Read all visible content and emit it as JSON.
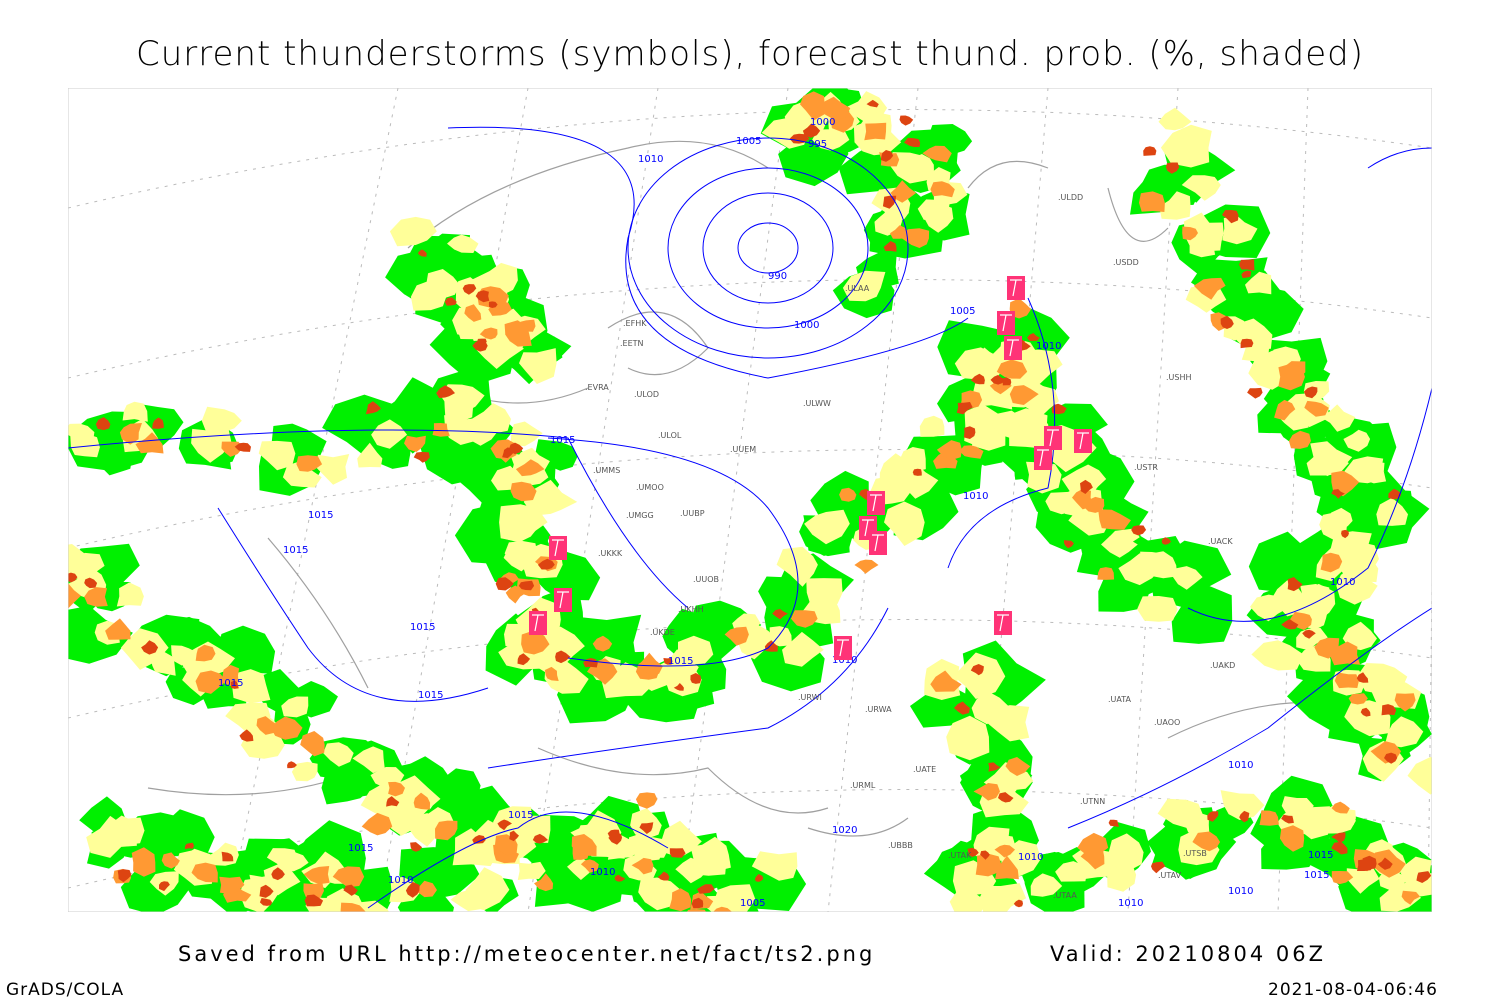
{
  "title": "Current thunderstorms (symbols), forecast thund. prob. (%, shaded)",
  "footer": {
    "source": "Saved from URL http://meteocenter.net/fact/ts2.png",
    "valid": "Valid: 20210804 06Z",
    "software": "GrADS/COLA",
    "timestamp": "2021-08-04-06:46"
  },
  "map": {
    "colors": {
      "prob_low": "#00f000",
      "prob_mid": "#ffff99",
      "prob_high": "#ff9933",
      "prob_max": "#dd4411",
      "thunderstorm_symbol": "#ff3377",
      "isobar": "#0000ff",
      "coastline": "#a0a0a0"
    },
    "isobar_labels": [
      "1000",
      "995",
      "1005",
      "1010",
      "990",
      "1000",
      "1005",
      "1010",
      "1015",
      "1015",
      "1015",
      "1015",
      "1015",
      "1015",
      "1015",
      "1010",
      "1010",
      "1010",
      "1010",
      "1015",
      "1020",
      "1015",
      "1010",
      "1010",
      "1005",
      "1010",
      "1015",
      "1010",
      "1015",
      "1010"
    ],
    "station_labels": [
      "ULDD",
      "USDD",
      "ULAA",
      "EFHK",
      "EETN",
      "EVRA",
      "ULOD",
      "ULOL",
      "UUEM",
      "ULWW",
      "UMMS",
      "UMOO",
      "UMGG",
      "UUBP",
      "UKKK",
      "UUOB",
      "UKHH",
      "UKDE",
      "URWI",
      "URWA",
      "UATE",
      "URML",
      "UBBB",
      "UTAK",
      "UTNN",
      "UATA",
      "UAOO",
      "UAKD",
      "UACK",
      "USTR",
      "USHH",
      "UTAA",
      "UTSB",
      "UTAV"
    ]
  }
}
